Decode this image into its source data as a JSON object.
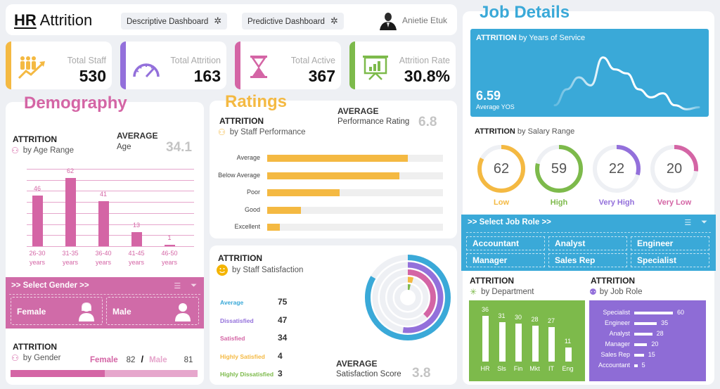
{
  "header": {
    "title_bold": "HR",
    "title_rest": " Attrition",
    "nav": [
      {
        "label": "Descriptive Dashboard",
        "icon": "asterisk-icon"
      },
      {
        "label": "Predictive Dashboard",
        "icon": "asterisk-icon"
      }
    ],
    "user_name": "Anietie Etuk"
  },
  "kpis": [
    {
      "label": "Total Staff",
      "value": "530",
      "color": "#f4b942",
      "icon": "staff-growth-icon"
    },
    {
      "label": "Total Attrition",
      "value": "163",
      "color": "#9370db",
      "icon": "gauge-icon"
    },
    {
      "label": "Total Active",
      "value": "367",
      "color": "#d465a5",
      "icon": "hourglass-icon"
    },
    {
      "label": "Attrition Rate",
      "value": "30.8%",
      "color": "#7dba4b",
      "icon": "presentation-chart-icon"
    }
  ],
  "demography": {
    "section_title": "Demography",
    "attrition_label": "ATTRITION",
    "by_label": "by Age Range",
    "average_label": "AVERAGE",
    "average_sub": "Age",
    "average_value": "34.1",
    "gender_slicer": {
      "header": ">> Select Gender >>",
      "options": [
        "Female",
        "Male"
      ]
    },
    "gender": {
      "attrition_label": "ATTRITION",
      "by_label": "by Gender",
      "female_label": "Female",
      "female_value": "82",
      "separator": "/",
      "male_label": "Male",
      "male_value": "81",
      "female_share": 0.503
    }
  },
  "ratings": {
    "section_title": "Ratings",
    "attrition_label": "ATTRITION",
    "by_label": "by Staff Performance",
    "average_label": "AVERAGE",
    "average_sub": "Performance Rating",
    "average_value": "6.8"
  },
  "satisfaction": {
    "attrition_label": "ATTRITION",
    "by_label": "by Staff Satisfaction",
    "items": [
      {
        "label": "Average",
        "value": "75",
        "color": "#3aa9d8"
      },
      {
        "label": "Dissatisfied",
        "value": "47",
        "color": "#9370db"
      },
      {
        "label": "Satisfied",
        "value": "34",
        "color": "#d465a5"
      },
      {
        "label": "Highly Satisfied",
        "value": "4",
        "color": "#f4b942"
      },
      {
        "label": "Highly Dissatisfied",
        "value": "3",
        "color": "#7dba4b"
      }
    ],
    "average_label": "AVERAGE",
    "average_sub": "Satisfaction Score",
    "average_value": "3.8"
  },
  "job": {
    "section_title": "Job Details",
    "yos_title_bold": "ATTRITION",
    "yos_title_rest": " by Years of Service",
    "yos_value": "6.59",
    "yos_label": "Average YOS",
    "salary_title_bold": "ATTRITION",
    "salary_title_rest": " by Salary Range",
    "role_slicer": {
      "header": ">> Select Job Role >>",
      "options": [
        "Accountant",
        "Analyst",
        "Engineer",
        "Manager",
        "Sales Rep",
        "Specialist"
      ]
    },
    "dept_attrition_label": "ATTRITION",
    "dept_by_label": "by Department",
    "role_attrition_label": "ATTRITION",
    "role_by_label": "by Job Role"
  },
  "chart_data": [
    {
      "type": "bar",
      "title": "ATTRITION by Age Range",
      "categories": [
        "26-30 years",
        "31-35 years",
        "36-40 years",
        "41-45 years",
        "46-50 years"
      ],
      "values": [
        46,
        62,
        41,
        13,
        1
      ],
      "ylim": [
        0,
        70
      ],
      "grid": true
    },
    {
      "type": "bar",
      "orientation": "horizontal",
      "title": "ATTRITION by Staff Performance",
      "categories": [
        "Average",
        "Below Average",
        "Poor",
        "Good",
        "Excellent"
      ],
      "values": [
        0.8,
        0.75,
        0.41,
        0.19,
        0.07
      ],
      "value_unit": "fraction of track"
    },
    {
      "type": "pie",
      "variant": "radial-bar",
      "title": "ATTRITION by Staff Satisfaction",
      "categories": [
        "Average",
        "Dissatisfied",
        "Satisfied",
        "Highly Satisfied",
        "Highly Dissatisfied"
      ],
      "values": [
        75,
        47,
        34,
        4,
        3
      ],
      "max": 90
    },
    {
      "type": "line",
      "title": "ATTRITION by Years of Service",
      "values": [
        2,
        6,
        9,
        7,
        14,
        11,
        10,
        6,
        4,
        5,
        2,
        1,
        1.5
      ],
      "smooth": true
    },
    {
      "type": "pie",
      "variant": "donut-gauges",
      "title": "ATTRITION by Salary Range",
      "categories": [
        "Low",
        "High",
        "Very High",
        "Very Low"
      ],
      "values": [
        62,
        59,
        22,
        20
      ],
      "colors": [
        "#f4b942",
        "#7dba4b",
        "#9370db",
        "#d465a5"
      ],
      "max": 75
    },
    {
      "type": "bar",
      "title": "ATTRITION by Department",
      "categories": [
        "HR",
        "Sls",
        "Fin",
        "Mkt",
        "IT",
        "Eng"
      ],
      "values": [
        36,
        31,
        30,
        28,
        27,
        11
      ]
    },
    {
      "type": "bar",
      "orientation": "horizontal",
      "title": "ATTRITION by Job Role",
      "categories": [
        "Specialist",
        "Engineer",
        "Analyst",
        "Manager",
        "Sales Rep",
        "Accountant"
      ],
      "values": [
        60,
        35,
        28,
        20,
        15,
        5
      ]
    }
  ]
}
